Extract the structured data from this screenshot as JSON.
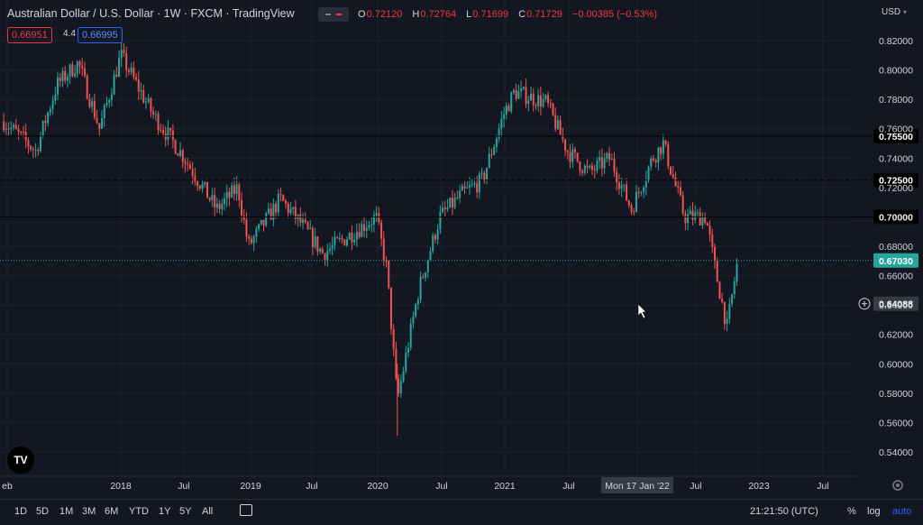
{
  "header": {
    "title": "Australian Dollar / U.S. Dollar · 1W · FXCM · TradingView",
    "ohlc": {
      "open_label": "O",
      "open": "0.72120",
      "high_label": "H",
      "high": "0.72764",
      "low_label": "L",
      "low": "0.71699",
      "close_label": "C",
      "close": "0.71729",
      "change": "−0.00385 (−0.53%)"
    },
    "bid": "0.66951",
    "spread": "4.4",
    "ask": "0.66995",
    "currency": "USD",
    "currency_icon": "chevron-down-icon"
  },
  "colors": {
    "up": "#26a69a",
    "down": "#ef5350",
    "bg": "#131722",
    "grid": "#1e222d",
    "text": "#d1d4dc",
    "last_price": "#26a69a"
  },
  "price_axis": {
    "ticks": [
      "0.82000",
      "0.80000",
      "0.78000",
      "0.76000",
      "0.74000",
      "0.72000",
      "0.70000",
      "0.68000",
      "0.66000",
      "0.64000",
      "0.62000",
      "0.60000",
      "0.58000",
      "0.56000",
      "0.54000"
    ],
    "labels": [
      {
        "text": "0.75500",
        "value": 0.755,
        "style": "line"
      },
      {
        "text": "0.72500",
        "value": 0.725,
        "style": "dashed"
      },
      {
        "text": "0.70000",
        "value": 0.7,
        "style": "line"
      },
      {
        "text": "0.67030",
        "value": 0.6703,
        "style": "last"
      },
      {
        "text": "0.64088",
        "value": 0.64088,
        "style": "crosshair"
      }
    ]
  },
  "time_axis": {
    "labels": [
      "eb",
      "2018",
      "Jul",
      "2019",
      "Jul",
      "2020",
      "Jul",
      "2021",
      "Jul",
      "Mon 17 Jan '22",
      "Jul",
      "2023",
      "Jul"
    ],
    "crosshair_label": "Mon 17 Jan '22"
  },
  "chart_data": {
    "type": "candlestick",
    "interval": "1W",
    "x_range": [
      "2017-02",
      "2023-07"
    ],
    "ylim": [
      0.53,
      0.825
    ],
    "path": [
      [
        "2017-02",
        0.765
      ],
      [
        "2017-05",
        0.745
      ],
      [
        "2017-07",
        0.79
      ],
      [
        "2017-09",
        0.805
      ],
      [
        "2017-11",
        0.76
      ],
      [
        "2018-01",
        0.81
      ],
      [
        "2018-04",
        0.77
      ],
      [
        "2018-07",
        0.74
      ],
      [
        "2018-10",
        0.705
      ],
      [
        "2018-12",
        0.72
      ],
      [
        "2019-01",
        0.68
      ],
      [
        "2019-04",
        0.712
      ],
      [
        "2019-06",
        0.695
      ],
      [
        "2019-08",
        0.675
      ],
      [
        "2019-10",
        0.685
      ],
      [
        "2020-01",
        0.7
      ],
      [
        "2020-02",
        0.665
      ],
      [
        "2020-03",
        0.575
      ],
      [
        "2020-05",
        0.65
      ],
      [
        "2020-07",
        0.7
      ],
      [
        "2020-09",
        0.715
      ],
      [
        "2020-11",
        0.725
      ],
      [
        "2021-01",
        0.77
      ],
      [
        "2021-02",
        0.785
      ],
      [
        "2021-05",
        0.778
      ],
      [
        "2021-07",
        0.745
      ],
      [
        "2021-09",
        0.73
      ],
      [
        "2021-11",
        0.74
      ],
      [
        "2022-01",
        0.705
      ],
      [
        "2022-03",
        0.74
      ],
      [
        "2022-04",
        0.75
      ],
      [
        "2022-06",
        0.7
      ],
      [
        "2022-08",
        0.7
      ],
      [
        "2022-09",
        0.66
      ],
      [
        "2022-10",
        0.625
      ],
      [
        "2022-11",
        0.6703
      ]
    ]
  },
  "bottom_toolbar": {
    "timeframes": [
      "1D",
      "5D",
      "1M",
      "3M",
      "6M",
      "YTD",
      "1Y",
      "5Y",
      "All"
    ],
    "compare_icon": "calendar-range-icon",
    "clock": "21:21:50 (UTC)",
    "percent": "%",
    "log": "log",
    "auto": "auto"
  },
  "logo": "TV",
  "icons": {
    "settings": "gear-icon",
    "add_alert": "plus-circle-icon",
    "cursor": "cursor-icon"
  }
}
